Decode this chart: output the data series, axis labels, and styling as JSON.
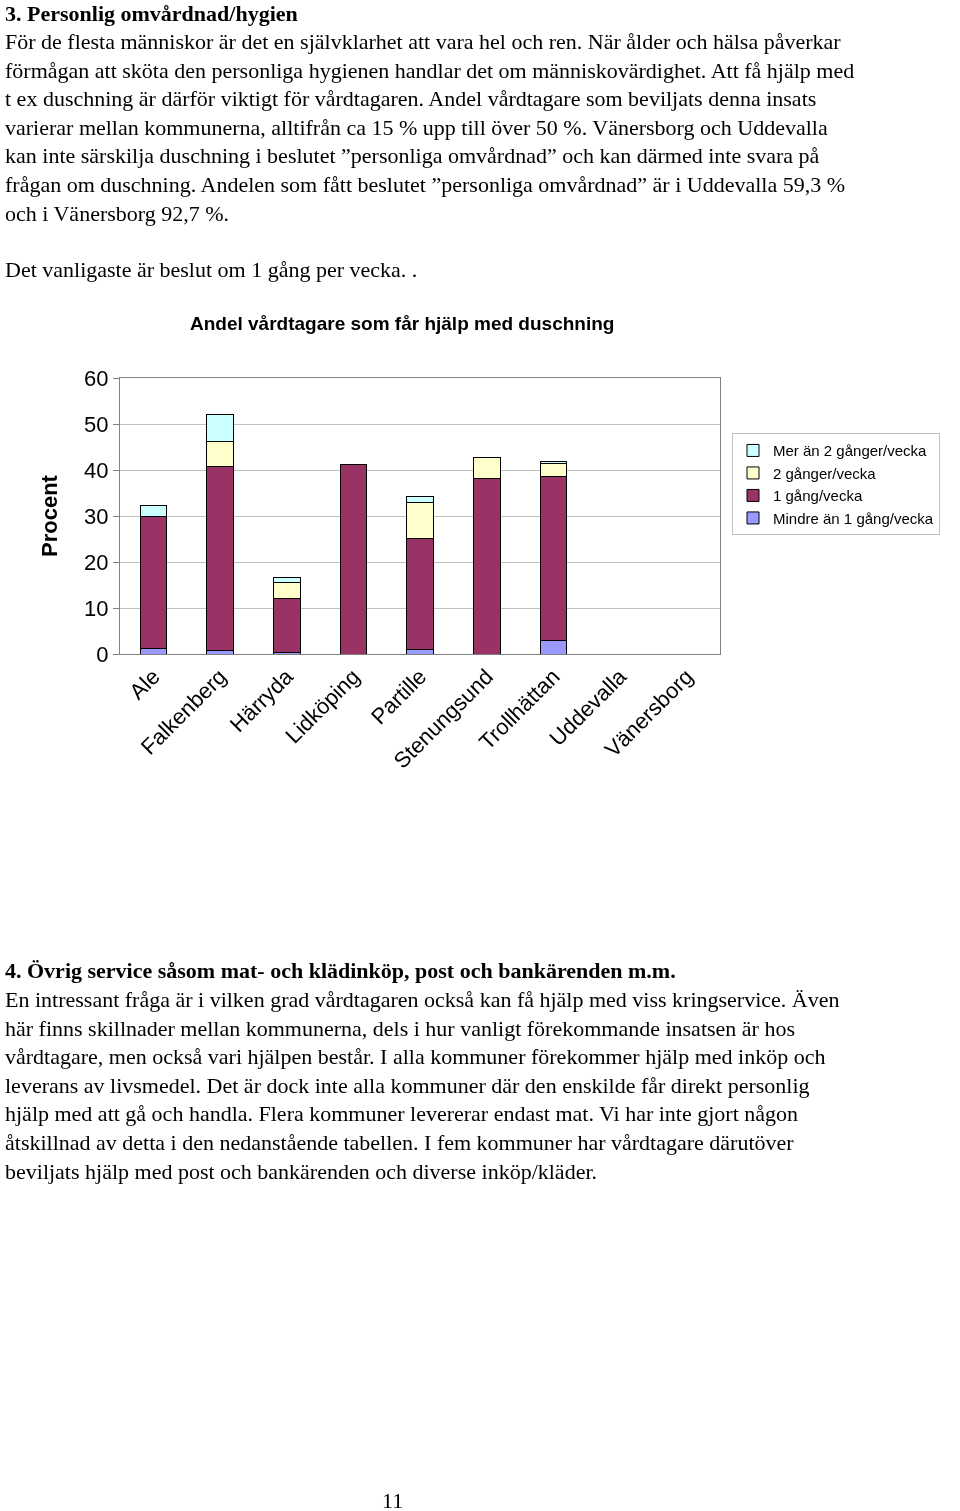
{
  "chart_data": {
    "type": "bar",
    "title": "Andel vårdtagare som får hjälp med duschning",
    "ylabel": "Procent",
    "categories": [
      "Ale",
      "Falkenberg",
      "Härryda",
      "Lidköping",
      "Partille",
      "Stenungsund",
      "Trollhättan",
      "Uddevalla",
      "Vänersborg"
    ],
    "stacked": true,
    "series": [
      {
        "name": "Mindre än 1 gång/vecka",
        "color": "#9999ff",
        "values": [
          1.3,
          0.7,
          0.3,
          null,
          1.0,
          null,
          3.0,
          null,
          null
        ]
      },
      {
        "name": "1 gång/vecka",
        "color": "#993366",
        "values": [
          28.7,
          40.1,
          11.7,
          41.1,
          24.1,
          38.2,
          35.5,
          null,
          null
        ]
      },
      {
        "name": "2 gånger/vecka",
        "color": "#ffffcc",
        "values": [
          null,
          5.5,
          3.6,
          null,
          7.9,
          4.5,
          2.9,
          null,
          null
        ]
      },
      {
        "name": "Mer än 2 gånger/vecka",
        "color": "#ccffff",
        "values": [
          2.3,
          5.7,
          1.1,
          null,
          1.3,
          null,
          0.4,
          null,
          null
        ]
      }
    ],
    "ylim": [
      0,
      60
    ],
    "yticks": [
      0,
      10,
      20,
      30,
      40,
      50,
      60
    ],
    "grid": "y",
    "legend": "right",
    "annotations": [
      "3. Personlig omvårdnad/hygien",
      "För de flesta människor är det en självklarhet att vara hel och ren. När ålder och hälsa påverkar förmågan att sköta den personliga hygienen handlar det om människovärdighet. Att få hjälp med t ex duschning är därför viktigt för vårdtagaren. Andel vårdtagare som beviljats denna insats varierar mellan kommunerna, alltifrån ca 15 % upp till över 50 %. Vänersborg och Uddevalla kan inte särskilja duschning i beslutet ”personliga omvårdnad” och kan därmed inte svara på frågan om duschning. Andelen som fått beslutet ”personliga omvårdnad” är i Uddevalla 59,3 % och i Vänersborg 92,7 %.",
      "Det vanligaste är beslut om 1 gång per vecka. .",
      "4. Övrig service såsom mat- och klädinköp, post och bankärenden m.m.",
      "En intressant fråga är i vilken grad vårdtagaren också kan få hjälp med viss kringservice. Även här finns skillnader mellan kommunerna, dels i hur vanligt förekommande insatsen är hos vårdtagare, men också vari hjälpen består. I alla kommuner förekommer hjälp med inköp och leverans av livsmedel. Det är dock inte alla kommuner där den enskilde får direkt personlig hjälp med att gå och handla. Flera kommuner levererar endast mat. Vi har inte gjort någon åtskillnad av detta i den nedanstående tabellen. I fem kommuner har vårdtagare därutöver beviljats hjälp med post och bankärenden och diverse inköp/kläder.",
      "11"
    ]
  }
}
